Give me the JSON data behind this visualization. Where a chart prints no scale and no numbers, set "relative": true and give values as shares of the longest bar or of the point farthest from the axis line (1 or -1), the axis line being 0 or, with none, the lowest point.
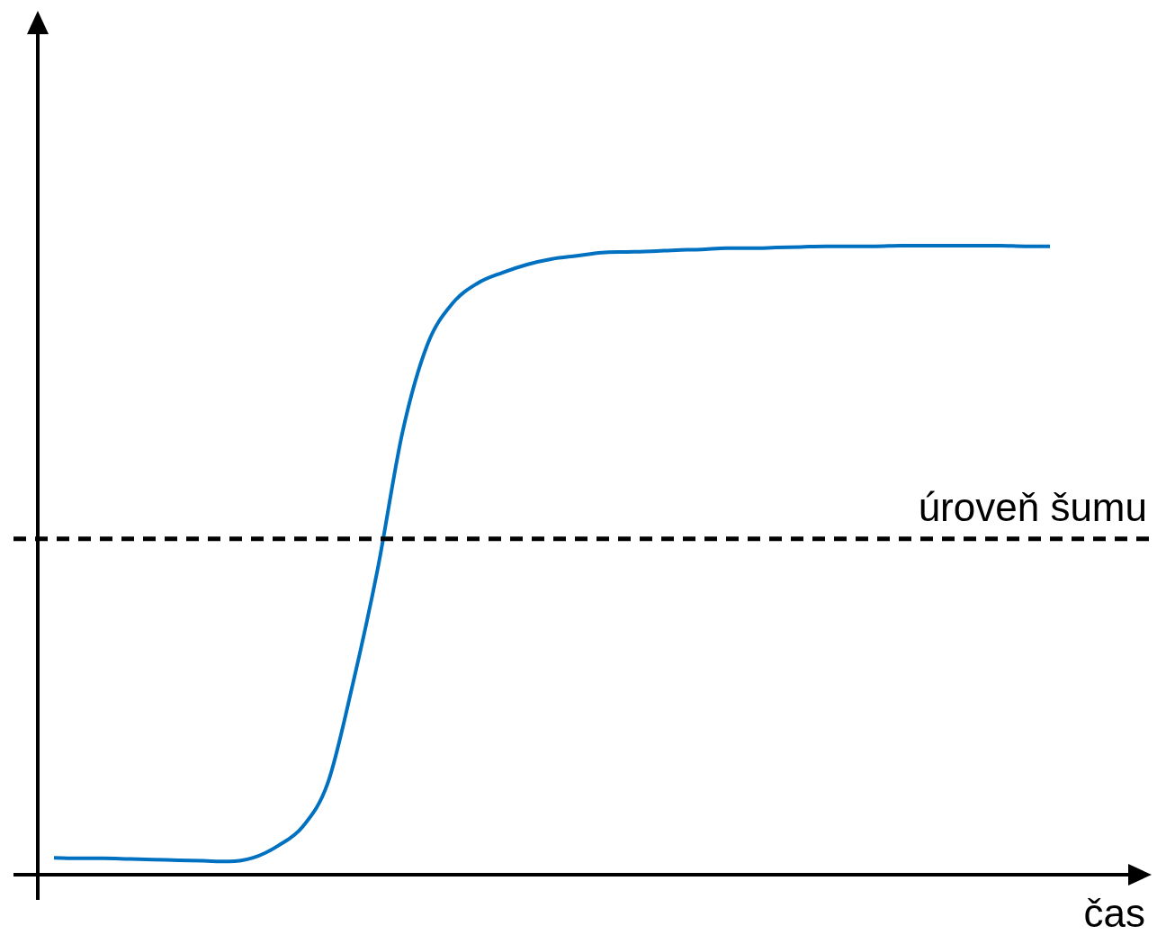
{
  "chart_data": {
    "type": "line",
    "relative": true,
    "xlabel": "čas",
    "categories": [
      null,
      null,
      null,
      null,
      null,
      null,
      null,
      null,
      null,
      null,
      null,
      null,
      null,
      null,
      null,
      null,
      null,
      null,
      null,
      null,
      null,
      null,
      null,
      null,
      null,
      null,
      null,
      null,
      null,
      null,
      null,
      null,
      null,
      null,
      null,
      null,
      null,
      null,
      null,
      null,
      null
    ],
    "series": [
      {
        "color": "#0070c0",
        "values": [
          0.027,
          0.026,
          0.026,
          0.025,
          0.024,
          0.023,
          0.022,
          0.021,
          0.027,
          0.046,
          0.077,
          0.146,
          0.303,
          0.486,
          0.704,
          0.843,
          0.908,
          0.94,
          0.957,
          0.97,
          0.979,
          0.984,
          0.989,
          0.99,
          0.991,
          0.993,
          0.994,
          0.996,
          0.996,
          0.997,
          0.998,
          0.999,
          0.999,
          0.999,
          1,
          1,
          1,
          1,
          1,
          0.999,
          0.999
        ]
      }
    ],
    "ref_lines": [
      {
        "axis": "y",
        "value": 0.534,
        "label": "úroveň šumu",
        "color": "#000000",
        "line_style": "dashed"
      }
    ],
    "legend": false,
    "marker": "none",
    "line_style": "solid"
  }
}
